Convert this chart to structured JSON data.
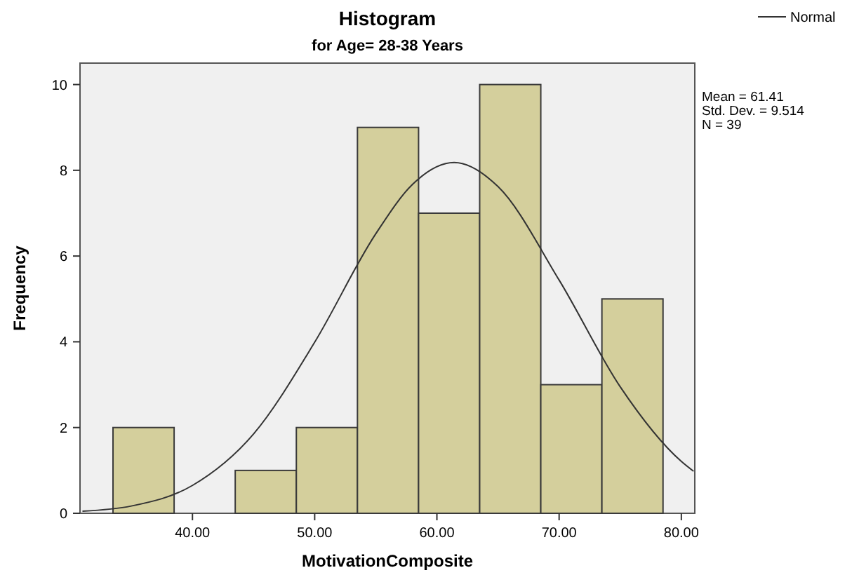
{
  "chart_data": {
    "type": "histogram",
    "title": "Histogram",
    "subtitle": "for Age= 28-38 Years",
    "xlabel": "MotivationComposite",
    "ylabel": "Frequency",
    "bins": [
      33.5,
      38.5,
      43.5,
      48.5,
      53.5,
      58.5,
      63.5,
      68.5,
      73.5,
      78.5
    ],
    "values": [
      2,
      0,
      1,
      2,
      9,
      7,
      10,
      3,
      5
    ],
    "color": "#d4cf9c",
    "series": [
      {
        "name": "Normal",
        "type": "line",
        "color": "#333333",
        "x": [
          31,
          35,
          40,
          45,
          50,
          55,
          58,
          61.41,
          65,
          70,
          75,
          80,
          81
        ],
        "values": [
          0.05,
          0.17,
          0.65,
          1.85,
          3.99,
          6.52,
          7.67,
          8.18,
          7.62,
          5.44,
          2.95,
          1.21,
          0.98
        ]
      }
    ],
    "xlim": [
      30.8,
      81.1
    ],
    "xticks": [
      {
        "value": 40,
        "label": "40.00"
      },
      {
        "value": 50,
        "label": "50.00"
      },
      {
        "value": 60,
        "label": "60.00"
      },
      {
        "value": 70,
        "label": "70.00"
      },
      {
        "value": 80,
        "label": "80.00"
      }
    ],
    "ylim": [
      0,
      10.5
    ],
    "yticks": [
      0,
      2,
      4,
      6,
      8,
      10
    ],
    "annotations": [
      "Mean = 61.41",
      "Std. Dev. = 9.514",
      "N = 39"
    ],
    "legend": "top right",
    "grid": false
  }
}
